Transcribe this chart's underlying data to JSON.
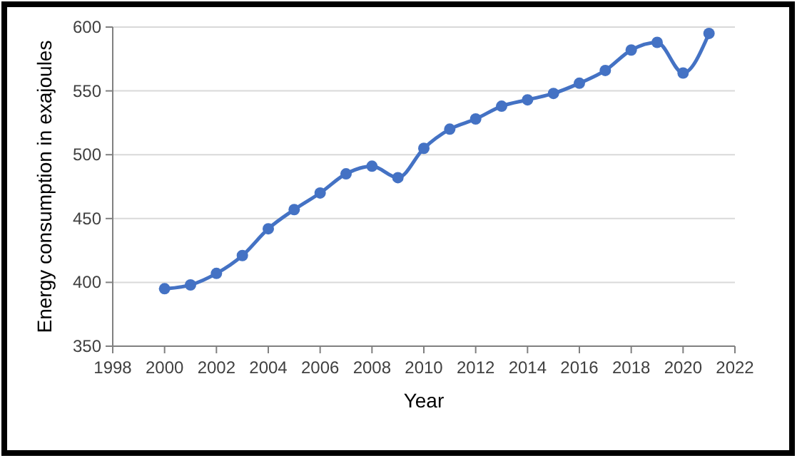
{
  "chart_data": {
    "type": "line",
    "xlabel": "Year",
    "ylabel": "Energy consumption in exajoules",
    "x": [
      2000,
      2001,
      2002,
      2003,
      2004,
      2005,
      2006,
      2007,
      2008,
      2009,
      2010,
      2011,
      2012,
      2013,
      2014,
      2015,
      2016,
      2017,
      2018,
      2019,
      2020,
      2021
    ],
    "series": [
      {
        "color": "#4472c4",
        "values": [
          395,
          398,
          407,
          421,
          442,
          457,
          470,
          485,
          491,
          482,
          505,
          520,
          528,
          538,
          543,
          548,
          556,
          566,
          582,
          588,
          564,
          595
        ]
      }
    ],
    "xlim": [
      1998,
      2022
    ],
    "xticks": [
      1998,
      2000,
      2002,
      2004,
      2006,
      2008,
      2010,
      2012,
      2014,
      2016,
      2018,
      2020,
      2022
    ],
    "ylim": [
      350,
      600
    ],
    "yticks": [
      350,
      400,
      450,
      500,
      550,
      600
    ],
    "grid": "y",
    "marker": "circle",
    "line_style": "solid"
  }
}
